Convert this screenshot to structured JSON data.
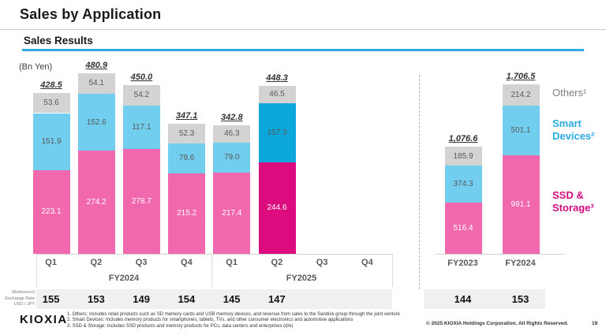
{
  "header": {
    "title": "Sales by Application",
    "section_title": "Sales Results",
    "unit_label": "(Bn Yen)"
  },
  "legend": {
    "others": "Others¹",
    "smart_devices": "Smart Devices²",
    "ssd_storage": "SSD & Storage³"
  },
  "chart_data": {
    "type": "bar",
    "stacked": true,
    "unit": "Bn Yen",
    "series_order_bottom_to_top": [
      "ssd_storage",
      "smart_devices",
      "others"
    ],
    "quarterly": {
      "categories": [
        "Q1",
        "Q2",
        "Q3",
        "Q4",
        "Q1",
        "Q2",
        "Q3",
        "Q4"
      ],
      "group_labels": [
        "FY2024",
        "FY2025"
      ],
      "bars": [
        {
          "fy": "FY2024",
          "quarter": "Q1",
          "total": "428.5",
          "ssd_storage": 223.1,
          "smart_devices": 151.9,
          "others": 53.6,
          "highlight": false
        },
        {
          "fy": "FY2024",
          "quarter": "Q2",
          "total": "480.9",
          "ssd_storage": 274.2,
          "smart_devices": 152.6,
          "others": 54.1,
          "highlight": false
        },
        {
          "fy": "FY2024",
          "quarter": "Q3",
          "total": "450.0",
          "ssd_storage": 278.7,
          "smart_devices": 117.1,
          "others": 54.2,
          "highlight": false
        },
        {
          "fy": "FY2024",
          "quarter": "Q4",
          "total": "347.1",
          "ssd_storage": 215.2,
          "smart_devices": 79.6,
          "others": 52.3,
          "highlight": false
        },
        {
          "fy": "FY2025",
          "quarter": "Q1",
          "total": "342.8",
          "ssd_storage": 217.4,
          "smart_devices": 79.0,
          "others": 46.3,
          "highlight": false
        },
        {
          "fy": "FY2025",
          "quarter": "Q2",
          "total": "448.3",
          "ssd_storage": 244.6,
          "smart_devices": 157.3,
          "others": 46.5,
          "highlight": true
        },
        null,
        null
      ]
    },
    "annual": {
      "bars": [
        {
          "label": "FY2023",
          "total": "1,076.6",
          "ssd_storage": 516.4,
          "smart_devices": 374.3,
          "others": 185.9,
          "highlight": false
        },
        {
          "label": "FY2024",
          "total": "1,706.5",
          "ssd_storage": 991.1,
          "smart_devices": 501.1,
          "others": 214.2,
          "highlight": false
        }
      ]
    },
    "exchange_rate": {
      "label_lines": [
        "(Reference)",
        "Exchange Rate",
        "USD / JPY"
      ],
      "quarterly_values": [
        "155",
        "153",
        "149",
        "154",
        "145",
        "147",
        "",
        ""
      ],
      "annual_values": [
        "144",
        "153"
      ]
    }
  },
  "colors": {
    "pink": "#F168AE",
    "magenta": "#DC0C7E",
    "blue": "#72CEEE",
    "blue_dark": "#0CA7DA",
    "gray": "#D3D3D3",
    "accent_cyan": "#29ABE2",
    "legend_others": "#7F7F7F",
    "legend_smart": "#29ABE2",
    "legend_ssd": "#D40A7E",
    "segment_text_dark": "#595959",
    "segment_text_light": "#FFFFFF"
  },
  "footer": {
    "logo": "KIOXIA",
    "notes": [
      "1. Others: Includes retail products such as SD memory cards and USB memory devices, and revenue from sales to the Sandisk group through the joint venture",
      "2. Smart Devices: Includes memory products for smartphones, tablets, TVs, and other consumer electronics and automotive applications",
      "3. SSD & Storage: Includes SSD products and memory products for PCs, data centers and enterprises (d/e)"
    ],
    "copyright": "© 2025 KIOXIA Holdings Corporation. All Rights Reserved.",
    "page_number": "19"
  }
}
